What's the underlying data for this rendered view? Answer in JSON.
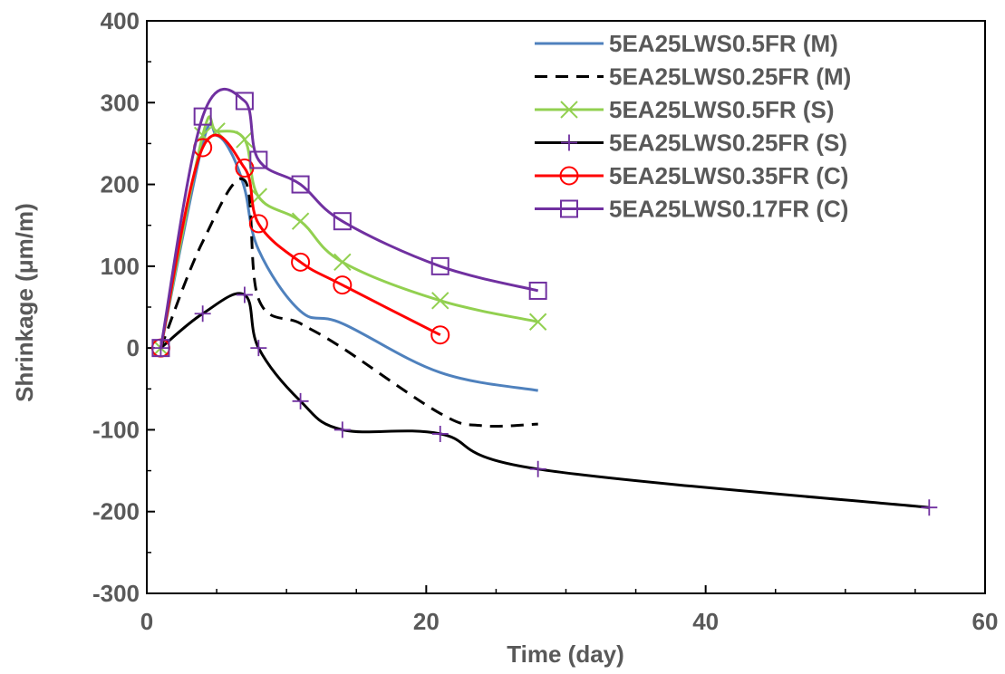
{
  "chart_data": {
    "type": "line",
    "title": "",
    "xlabel": "Time (day)",
    "ylabel": "Shrinkage (μm/m)",
    "xlim": [
      0,
      60
    ],
    "ylim": [
      -300,
      400
    ],
    "x_ticks": [
      "0",
      "20",
      "40",
      "60"
    ],
    "y_ticks": [
      "400",
      "300",
      "200",
      "100",
      "0",
      "-100",
      "-200",
      "-300"
    ],
    "grid": false,
    "legend_position": "top-right",
    "series": [
      {
        "name": "5EA25LWS0.5FR (M)",
        "color": "#4f81bd",
        "dash": "solid",
        "marker": "none",
        "x": [
          1,
          4,
          5,
          6,
          7,
          8,
          11,
          14,
          21,
          28
        ],
        "y": [
          0,
          250,
          260,
          240,
          195,
          120,
          45,
          30,
          -30,
          -52
        ]
      },
      {
        "name": "5EA25LWS0.25FR (M)",
        "color": "#000000",
        "dash": "dashed",
        "marker": "none",
        "x": [
          1,
          4,
          7,
          8,
          11,
          14,
          21,
          24,
          28
        ],
        "y": [
          0,
          130,
          205,
          60,
          30,
          0,
          -80,
          -95,
          -93
        ]
      },
      {
        "name": "5EA25LWS0.5FR (S)",
        "color": "#92d050",
        "dash": "solid",
        "marker": "x",
        "x": [
          1,
          4,
          5,
          7,
          8,
          11,
          14,
          21,
          28
        ],
        "y": [
          0,
          260,
          265,
          255,
          185,
          155,
          105,
          58,
          32
        ]
      },
      {
        "name": "5EA25LWS0.25FR (S)",
        "color": "#000000",
        "marker_color": "#7030a0",
        "dash": "solid",
        "marker": "plus",
        "x": [
          1,
          4,
          7,
          8,
          11,
          14,
          21,
          28,
          56
        ],
        "y": [
          0,
          42,
          65,
          0,
          -65,
          -100,
          -105,
          -148,
          -195
        ]
      },
      {
        "name": "5EA25LWS0.35FR (C)",
        "color": "#ff0000",
        "dash": "solid",
        "marker": "circle",
        "x": [
          1,
          4,
          7,
          8,
          11,
          14,
          21
        ],
        "y": [
          0,
          245,
          220,
          152,
          105,
          77,
          16
        ]
      },
      {
        "name": "5EA25LWS0.17FR (C)",
        "color": "#7030a0",
        "dash": "solid",
        "marker": "square",
        "x": [
          1,
          4,
          7,
          8,
          11,
          14,
          21,
          28
        ],
        "y": [
          0,
          283,
          302,
          230,
          200,
          155,
          100,
          70
        ]
      }
    ]
  }
}
